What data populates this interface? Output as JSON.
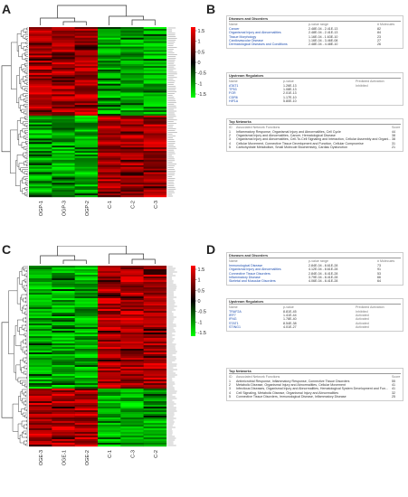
{
  "panels": {
    "A": "A",
    "B": "B",
    "C": "C",
    "D": "D"
  },
  "heatmapA": {
    "columns": [
      "OGP-1",
      "OGP-3",
      "OGP-2",
      "C-1",
      "C-2",
      "C-3"
    ],
    "legend_ticks": [
      "1.5",
      "1",
      "0.5",
      "0",
      "-0.5",
      "-1",
      "-1.5"
    ],
    "colors": {
      "high": "#ff0000",
      "mid": "#000000",
      "low": "#00ff00"
    }
  },
  "heatmapC": {
    "columns": [
      "OGE-3",
      "OGE-1",
      "OGE-2",
      "C-1",
      "C-3",
      "C-2"
    ],
    "legend_ticks": [
      "1.5",
      "1",
      "0.5",
      "0",
      "-0.5",
      "-1",
      "-1.5"
    ],
    "colors": {
      "high": "#ff0000",
      "mid": "#000000",
      "low": "#00ff00"
    }
  },
  "ipaB": {
    "diseases": {
      "title": "Diseases and Disorders",
      "col_name": "Name",
      "col_p": "p-value range",
      "col_n": "# Molecules",
      "rows": [
        {
          "name": "Cancer",
          "p": "2.48E-04 - 2.41E-13",
          "n": "82"
        },
        {
          "name": "Organismal Injury and Abnormalities",
          "p": "2.48E-04 - 2.41E-13",
          "n": "84"
        },
        {
          "name": "Tissue Morphology",
          "p": "1.16E-04 - 1.63E-10",
          "n": "23"
        },
        {
          "name": "Cardiovascular Disease",
          "p": "1.16E-04 - 3.46E-08",
          "n": "27"
        },
        {
          "name": "Dermatological Diseases and Conditions",
          "p": "2.48E-04 - 4.48E-10",
          "n": "26"
        }
      ]
    },
    "regulators": {
      "title": "Upstream Regulators",
      "col_name": "Name",
      "col_p": "p-value",
      "col_act": "Predicted Activation",
      "rows": [
        {
          "name": "ATAT1",
          "p": "1.26E-13",
          "act": "Inhibited"
        },
        {
          "name": "TP53",
          "p": "1.08E-13",
          "act": ""
        },
        {
          "name": "FGR",
          "p": "2.01E-13",
          "act": ""
        },
        {
          "name": "CDR6",
          "p": "1.17E-10",
          "act": ""
        },
        {
          "name": "HIF1A",
          "p": "5.80E-10",
          "act": ""
        }
      ]
    },
    "networks": {
      "title": "Top Networks",
      "col_id": "ID",
      "col_fn": "Associated Network Functions",
      "col_score": "Score",
      "rows": [
        {
          "id": "1",
          "fn": "Inflammatory Response, Organismal Injury and Abnormalities, Cell Cycle",
          "score": "44"
        },
        {
          "id": "2",
          "fn": "Organismal Injury and Abnormalities, Cancer, Hematological Disease",
          "score": "38"
        },
        {
          "id": "3",
          "fn": "Organismal Injury and Abnormalities, Cell-To-Cell Signaling and Interaction, Cellular Assembly and Organi...",
          "score": "38"
        },
        {
          "id": "4",
          "fn": "Cellular Movement, Connective Tissue Development and Function, Cellular Compromise",
          "score": "31"
        },
        {
          "id": "5",
          "fn": "Carbohydrate Metabolism, Small Molecule Biochemistry, Cardiac Dysfunction",
          "score": "21"
        }
      ]
    }
  },
  "ipaD": {
    "diseases": {
      "title": "Diseases and Disorders",
      "col_name": "Name",
      "col_p": "p-value range",
      "col_n": "# Molecules",
      "rows": [
        {
          "name": "Immunological Disease",
          "p": "2.84E-04 - 8.61E-28",
          "n": "73"
        },
        {
          "name": "Organismal Injury and Abnormalities",
          "p": "4.12E-04 - 8.61E-28",
          "n": "91"
        },
        {
          "name": "Connective Tissue Disorders",
          "p": "2.84E-04 - 8.41E-28",
          "n": "53"
        },
        {
          "name": "Inflammatory Disease",
          "p": "3.79E-04 - 8.41E-28",
          "n": "66"
        },
        {
          "name": "Skeletal and Muscular Disorders",
          "p": "4.06E-04 - 8.41E-28",
          "n": "64"
        }
      ]
    },
    "regulators": {
      "title": "Upstream Regulators",
      "col_name": "Name",
      "col_p": "p-value",
      "col_act": "Predicted Activation",
      "rows": [
        {
          "name": "TRAF2A",
          "p": "8.81E-45",
          "act": "Inhibited"
        },
        {
          "name": "IRF7",
          "p": "1.41E-44",
          "act": "Activated"
        },
        {
          "name": "IFNG",
          "p": "1.78E-40",
          "act": "Activated"
        },
        {
          "name": "STAT1",
          "p": "8.54E-38",
          "act": "Activated"
        },
        {
          "name": "STING1",
          "p": "4.01E-27",
          "act": "Activated"
        }
      ]
    },
    "networks": {
      "title": "Top Networks",
      "col_id": "ID",
      "col_fn": "Associated Network Functions",
      "col_score": "Score",
      "rows": [
        {
          "id": "1",
          "fn": "Antimicrobial Response, Inflammatory Response, Connective Tissue Disorders",
          "score": "55"
        },
        {
          "id": "2",
          "fn": "Metabolic Disease, Organismal Injury and Abnormalities, Cellular Movement",
          "score": "41"
        },
        {
          "id": "3",
          "fn": "Infectious Diseases, Organismal Injury and Abnormalities, Hematological System Development and Fun...",
          "score": "41"
        },
        {
          "id": "4",
          "fn": "Cell Signaling, Metabolic Disease, Organismal Injury and Abnormalities",
          "score": "32"
        },
        {
          "id": "5",
          "fn": "Connective Tissue Disorders, Immunological Disease, Inflammatory Disease",
          "score": "25"
        }
      ]
    }
  }
}
